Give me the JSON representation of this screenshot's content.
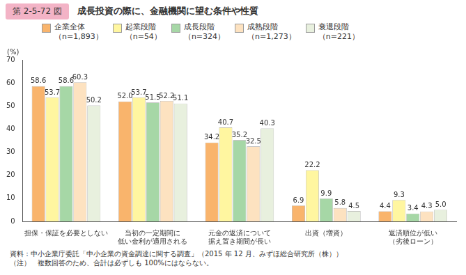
{
  "chart_data": {
    "type": "bar",
    "title": "成長投資の際に、金融機関に望む条件や性質",
    "subtitle": "第 2-5-72 図",
    "y_label": "(%)",
    "categories": [
      "担保・保証を必要としない",
      "当初の一定期間に\n低い金利が適用される",
      "元金の返済について\n据え置き期間が長い",
      "出資（増資）",
      "返済順位が低い\n（劣後ローン）"
    ],
    "series": [
      {
        "name": "企業全体\n（n=1,893）",
        "color": "#f9b46c",
        "values": [
          58.6,
          52.0,
          34.2,
          6.9,
          4.4
        ],
        "value_labels": [
          "58.6",
          "52.0",
          "34.2",
          "6.9",
          "4.4"
        ]
      },
      {
        "name": "起業段階\n（n=54）",
        "color": "#fff6a0",
        "values": [
          53.7,
          53.7,
          40.7,
          22.2,
          9.3
        ],
        "value_labels": [
          "53.7",
          "53.7",
          "40.7",
          "22.2",
          "9.3"
        ]
      },
      {
        "name": "成長段階\n（n=324）",
        "color": "#a6d7a6",
        "values": [
          58.6,
          51.5,
          35.2,
          9.9,
          3.4
        ],
        "value_labels": [
          "58.6",
          "51.5",
          "35.2",
          "9.9",
          "3.4"
        ]
      },
      {
        "name": "成熟段階\n（n=1,273）",
        "color": "#fde2c0",
        "values": [
          60.3,
          52.2,
          32.5,
          5.8,
          4.3
        ],
        "value_labels": [
          "60.3",
          "52.2",
          "32.5",
          "5.8",
          "4.3"
        ]
      },
      {
        "name": "衰退段階\n（n=221）",
        "color": "#e8f0de",
        "values": [
          50.2,
          51.1,
          40.3,
          4.5,
          5.0
        ],
        "value_labels": [
          "50.2",
          "51.1",
          "40.3",
          "4.5",
          "5.0"
        ]
      }
    ],
    "ylim": [
      0,
      70
    ],
    "yticks": [
      0,
      10,
      20,
      30,
      40,
      50,
      60,
      70
    ],
    "grid": false,
    "legend": "top",
    "data_labels": true,
    "annotations": [
      "資料：中小企業庁委託「中小企業の資金調達に関する調査」（2015 年 12 月、みずほ総合研究所（株））",
      "（注）　複数回答のため、合計は必ずしも 100%にはならない。"
    ]
  }
}
